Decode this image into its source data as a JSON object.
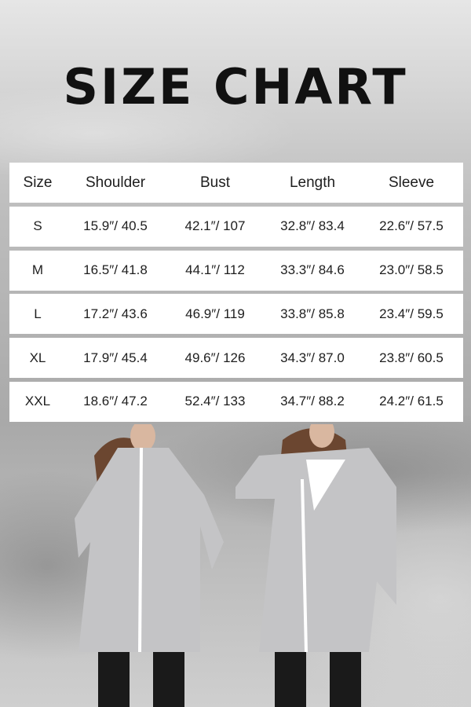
{
  "title": "SIZE CHART",
  "table": {
    "headers": [
      "Size",
      "Shoulder",
      "Bust",
      "Length",
      "Sleeve"
    ],
    "rows": [
      [
        "S",
        "15.9″/ 40.5",
        "42.1″/ 107",
        "32.8″/ 83.4",
        "22.6″/ 57.5"
      ],
      [
        "M",
        "16.5″/ 41.8",
        "44.1″/ 112",
        "33.3″/ 84.6",
        "23.0″/ 58.5"
      ],
      [
        "L",
        "17.2″/ 43.6",
        "46.9″/ 119",
        "33.8″/ 85.8",
        "23.4″/ 59.5"
      ],
      [
        "XL",
        "17.9″/ 45.4",
        "49.6″/ 126",
        "34.3″/ 87.0",
        "23.8″/ 60.5"
      ],
      [
        "XXL",
        "18.6″/ 47.2",
        "52.4″/ 133",
        "34.7″/ 88.2",
        "24.2″/ 61.5"
      ]
    ]
  },
  "colors": {
    "coat": "#c4c4c6",
    "zipper": "#ffffff",
    "hair": "#6b4630"
  }
}
